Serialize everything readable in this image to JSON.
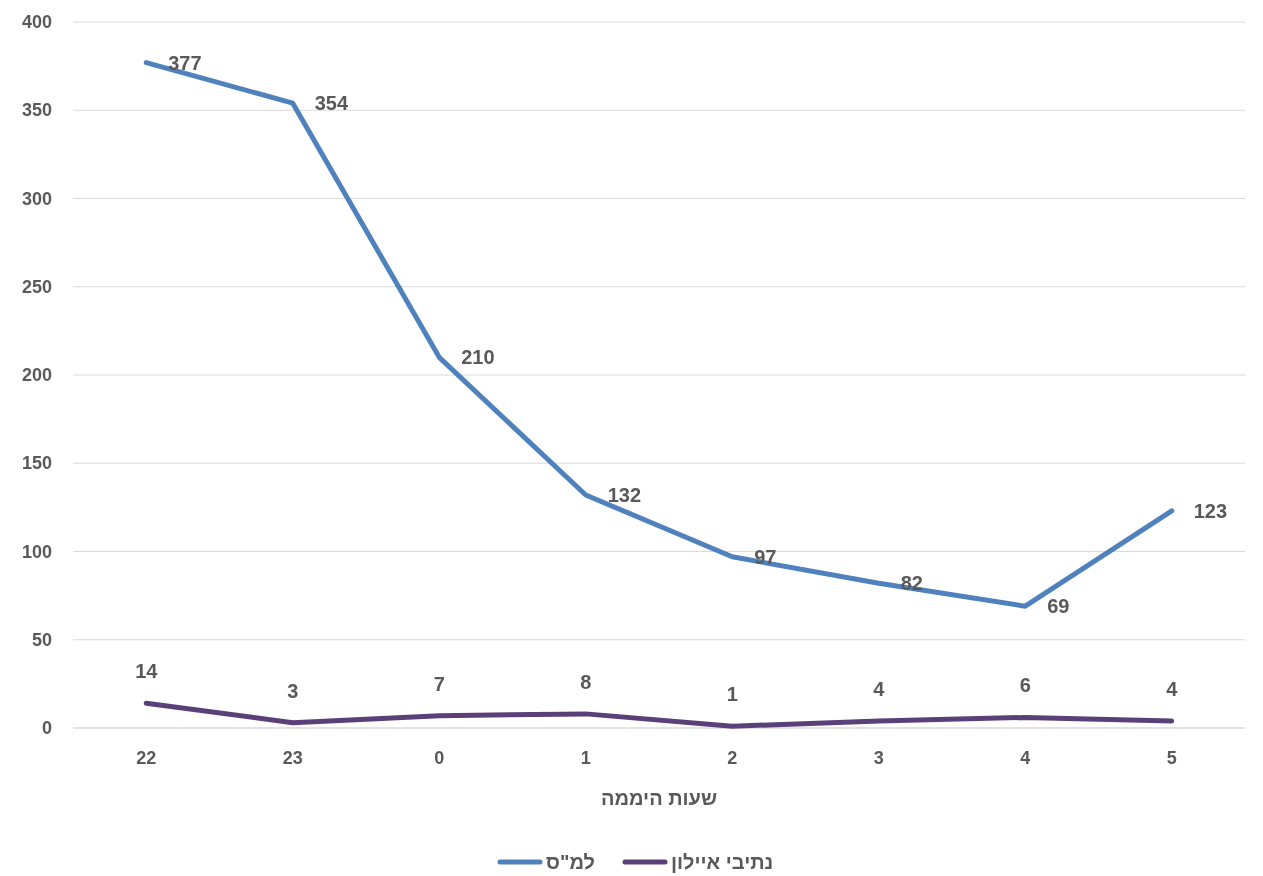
{
  "chart_data": {
    "type": "line",
    "xlabel": "שעות היממה",
    "categories": [
      "22",
      "23",
      "0",
      "1",
      "2",
      "3",
      "4",
      "5"
    ],
    "series": [
      {
        "name": "למ\"ס",
        "color": "#4f81bd",
        "values": [
          377,
          354,
          210,
          132,
          97,
          82,
          69,
          123
        ]
      },
      {
        "name": "נתיבי איילון",
        "color": "#5b3f78",
        "values": [
          14,
          3,
          7,
          8,
          1,
          4,
          6,
          4
        ]
      }
    ],
    "ylim": [
      0,
      400
    ],
    "yticks": [
      0,
      50,
      100,
      150,
      200,
      250,
      300,
      350,
      400
    ],
    "grid": "y",
    "legend": "bottom",
    "data_labels": true,
    "marker": "none",
    "line_style": "solid"
  }
}
